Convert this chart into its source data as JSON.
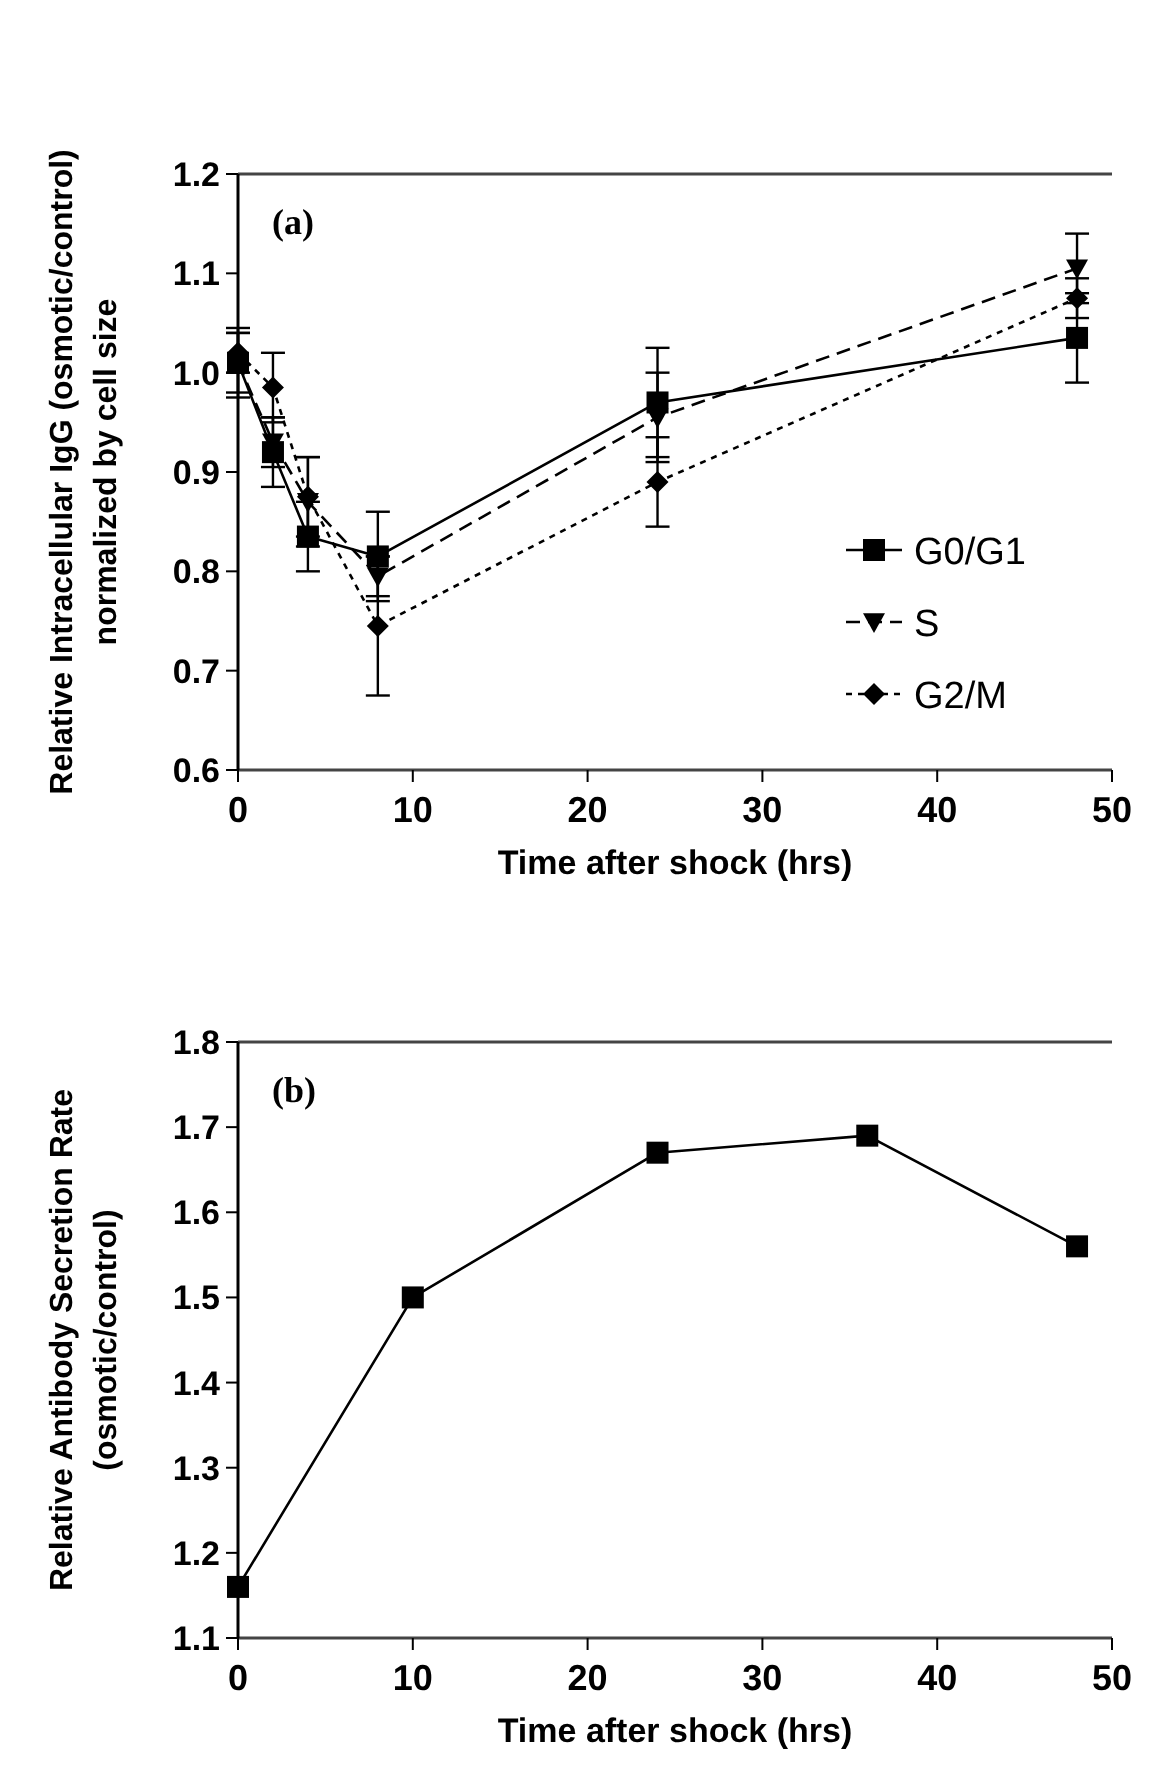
{
  "chart_data": [
    {
      "type": "line",
      "xlabel": "Time after shock (hrs)",
      "ylabel": "Relative Intracellular IgG (osmotic/control)\nnormalized by cell size",
      "annotations": [
        "(a)"
      ],
      "x": [
        0,
        2,
        4,
        8,
        24,
        48
      ],
      "xlim": [
        0,
        50
      ],
      "xticks": [
        0,
        10,
        20,
        30,
        40,
        50
      ],
      "ylim": [
        0.6,
        1.2
      ],
      "yticks": [
        0.6,
        0.7,
        0.8,
        0.9,
        {
          "value": 1,
          "label": "1.0"
        },
        1.1,
        1.2
      ],
      "legend": "right",
      "grid": false,
      "series": [
        {
          "name": "G0/G1",
          "color": "#000000",
          "marker": "square",
          "line_style": "solid",
          "values": [
            1.01,
            0.92,
            0.835,
            0.815,
            0.97,
            1.035
          ],
          "errors": [
            0.035,
            0.035,
            0.035,
            0.045,
            0.055,
            0.045
          ]
        },
        {
          "name": "S",
          "color": "#000000",
          "marker": "triangle",
          "line_style": "dashed",
          "values": [
            1.01,
            0.93,
            0.87,
            0.795,
            0.955,
            1.105
          ],
          "errors": [
            0.03,
            0.025,
            0.045,
            0.02,
            0.045,
            0.035
          ]
        },
        {
          "name": "G2/M",
          "color": "#000000",
          "marker": "diamond",
          "line_style": "dotted",
          "values": [
            1.02,
            0.985,
            0.875,
            0.745,
            0.89,
            1.075
          ],
          "errors": [
            0.02,
            0.035,
            0.04,
            0.07,
            0.045,
            0.02
          ]
        }
      ]
    },
    {
      "type": "line",
      "xlabel": "Time after shock (hrs)",
      "ylabel": "Relative Antibody Secretion Rate\n(osmotic/control)",
      "annotations": [
        "(b)"
      ],
      "x": [
        0,
        10,
        24,
        36,
        48
      ],
      "xlim": [
        0,
        50
      ],
      "xticks": [
        0,
        10,
        20,
        30,
        40,
        50
      ],
      "ylim": [
        1.1,
        1.8
      ],
      "yticks": [
        1.1,
        1.2,
        1.3,
        1.4,
        1.5,
        1.6,
        1.7,
        1.8
      ],
      "legend": false,
      "grid": false,
      "series": [
        {
          "color": "#000000",
          "marker": "square",
          "line_style": "solid",
          "values": [
            1.16,
            1.5,
            1.67,
            1.69,
            1.56
          ]
        }
      ]
    }
  ]
}
